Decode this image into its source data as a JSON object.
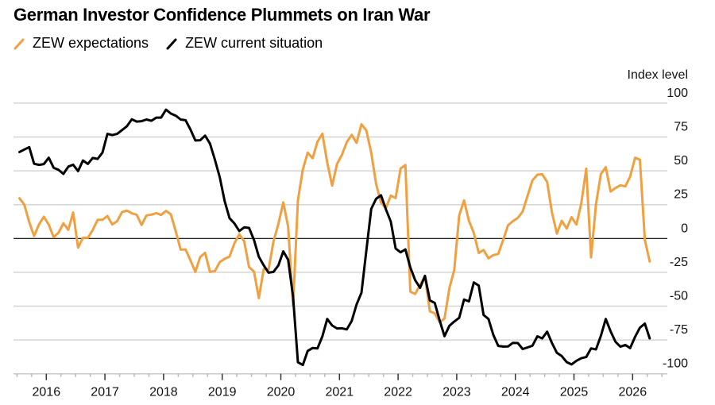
{
  "title": "German Investor Confidence Plummets on Iran War",
  "chart_data": {
    "type": "line",
    "title": "German Investor Confidence Plummets on Iran War",
    "ylabel": "Index level",
    "ylim": [
      -100,
      100
    ],
    "yticks": [
      100,
      75,
      50,
      25,
      0,
      -25,
      -50,
      -75,
      -100
    ],
    "xticks": [
      "2016",
      "2017",
      "2018",
      "2019",
      "2020",
      "2021",
      "2022",
      "2023",
      "2024",
      "2025",
      "2026"
    ],
    "grid": true,
    "legend_position": "top-left",
    "start_month": "2015-07",
    "end_month": "2026-04",
    "series": [
      {
        "name": "ZEW expectations",
        "color": "#f0a040",
        "values": [
          29.7,
          25.0,
          12.1,
          1.9,
          10.4,
          16.1,
          10.2,
          1.0,
          4.3,
          11.2,
          6.4,
          19.2,
          -6.8,
          0.5,
          0.5,
          6.2,
          13.8,
          13.8,
          16.6,
          10.4,
          12.8,
          19.5,
          20.6,
          18.6,
          17.5,
          10.0,
          17.0,
          17.6,
          18.7,
          17.4,
          20.4,
          17.8,
          5.1,
          -8.2,
          -8.2,
          -16.1,
          -24.7,
          -13.7,
          -10.6,
          -24.7,
          -24.1,
          -17.5,
          -15.0,
          -13.4,
          -3.6,
          3.1,
          -2.1,
          -21.1,
          -24.5,
          -44.1,
          -22.5,
          -22.8,
          -2.1,
          10.7,
          26.7,
          8.7,
          -49.5,
          28.2,
          51.0,
          63.4,
          59.3,
          71.5,
          77.4,
          56.1,
          39.0,
          55.0,
          61.8,
          71.2,
          76.6,
          70.7,
          84.4,
          79.8,
          63.3,
          40.4,
          26.5,
          22.3,
          31.7,
          29.9,
          51.7,
          54.3,
          -39.3,
          -41.0,
          -34.3,
          -28.0,
          -53.8,
          -55.3,
          -61.9,
          -59.2,
          -36.7,
          -23.3,
          16.9,
          28.1,
          13.0,
          4.1,
          -10.7,
          -8.5,
          -14.7,
          -12.3,
          -11.4,
          -1.1,
          9.8,
          12.8,
          15.2,
          19.9,
          31.7,
          42.9,
          47.1,
          47.5,
          41.8,
          19.2,
          3.6,
          13.1,
          7.4,
          15.7,
          10.3,
          26.0,
          51.6,
          -14.0,
          25.2,
          47.5,
          52.7,
          34.7,
          37.3,
          39.3,
          38.5,
          45.8,
          59.6,
          58.3,
          -1.0,
          -17.0
        ]
      },
      {
        "name": "ZEW current situation",
        "color": "#000000",
        "values": [
          63.9,
          65.7,
          67.5,
          55.2,
          54.4,
          55.0,
          59.7,
          52.3,
          50.7,
          47.7,
          53.1,
          54.5,
          49.8,
          57.6,
          55.1,
          59.5,
          58.8,
          63.5,
          77.3,
          76.4,
          77.3,
          80.1,
          83.0,
          88.0,
          86.4,
          86.7,
          87.9,
          87.0,
          89.3,
          89.3,
          95.2,
          92.3,
          90.7,
          87.9,
          87.4,
          80.6,
          72.4,
          72.6,
          76.0,
          70.1,
          58.2,
          45.3,
          27.6,
          15.0,
          11.1,
          5.5,
          8.2,
          7.8,
          -1.1,
          -13.5,
          -19.9,
          -25.3,
          -24.7,
          -19.9,
          -9.5,
          -15.7,
          -43.1,
          -91.5,
          -93.5,
          -83.1,
          -80.9,
          -81.3,
          -72.3,
          -59.5,
          -64.3,
          -66.5,
          -66.4,
          -67.2,
          -61.0,
          -48.8,
          -40.1,
          -9.1,
          21.9,
          29.3,
          31.9,
          21.6,
          12.5,
          -7.4,
          -10.2,
          -8.1,
          -21.4,
          -30.8,
          -36.5,
          -27.6,
          -45.8,
          -47.6,
          -60.5,
          -72.2,
          -64.5,
          -61.4,
          -58.6,
          -45.1,
          -46.5,
          -32.5,
          -34.8,
          -56.5,
          -59.5,
          -71.3,
          -79.4,
          -79.9,
          -79.8,
          -77.1,
          -77.3,
          -81.7,
          -80.5,
          -79.2,
          -72.3,
          -73.8,
          -68.9,
          -77.3,
          -84.5,
          -86.9,
          -91.4,
          -93.1,
          -90.4,
          -88.5,
          -87.6,
          -81.2,
          -82.0,
          -72.0,
          -59.5,
          -68.6,
          -76.4,
          -80.0,
          -78.7,
          -81.0,
          -72.7,
          -65.9,
          -62.9,
          -73.8
        ]
      }
    ]
  }
}
